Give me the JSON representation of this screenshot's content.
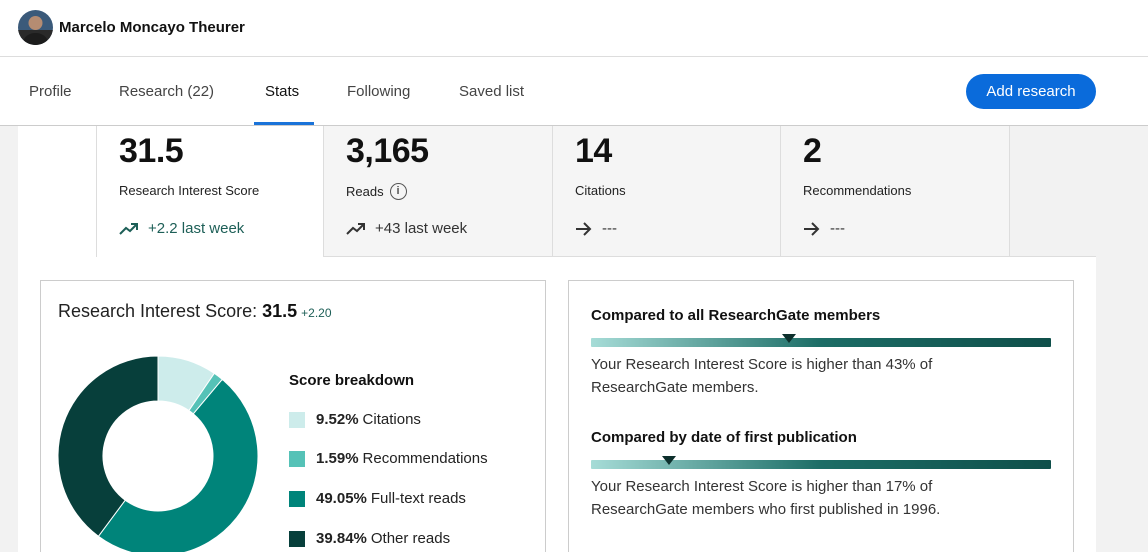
{
  "user": {
    "name": "Marcelo Moncayo Theurer"
  },
  "nav": {
    "tabs": [
      {
        "label": "Profile",
        "active": false
      },
      {
        "label": "Research (22)",
        "active": false
      },
      {
        "label": "Stats",
        "active": true
      },
      {
        "label": "Following",
        "active": false
      },
      {
        "label": "Saved list",
        "active": false
      }
    ],
    "add_button": "Add research"
  },
  "stats": [
    {
      "value": "31.5",
      "label": "Research Interest Score",
      "trend": "+2.2 last week",
      "trend_icon": "trending-up-icon",
      "active": true
    },
    {
      "value": "3,165",
      "label": "Reads",
      "has_info": true,
      "trend": "+43 last week",
      "trend_icon": "trending-up-icon"
    },
    {
      "value": "14",
      "label": "Citations",
      "trend": "---",
      "trend_icon": "arrow-right-icon"
    },
    {
      "value": "2",
      "label": "Recommendations",
      "trend": "---",
      "trend_icon": "arrow-right-icon"
    }
  ],
  "score_card": {
    "title": "Research Interest Score:",
    "score": "31.5",
    "delta": "+2.20",
    "breakdown_title": "Score breakdown",
    "breakdown": [
      {
        "percent": "9.52%",
        "label": "Citations",
        "value": 9.52,
        "color": "#cdeceb"
      },
      {
        "percent": "1.59%",
        "label": "Recommendations",
        "value": 1.59,
        "color": "#55c2b7"
      },
      {
        "percent": "49.05%",
        "label": "Full-text reads",
        "value": 49.05,
        "color": "#00847a"
      },
      {
        "percent": "39.84%",
        "label": "Other reads",
        "value": 39.84,
        "color": "#073f3b"
      }
    ]
  },
  "compare": [
    {
      "heading": "Compared to all ResearchGate members",
      "text": "Your Research Interest Score is higher than 43% of ResearchGate members.",
      "percentile": 43
    },
    {
      "heading": "Compared by date of first publication",
      "text": "Your Research Interest Score is higher than 17% of ResearchGate members who first published in 1996.",
      "percentile": 17
    }
  ]
}
